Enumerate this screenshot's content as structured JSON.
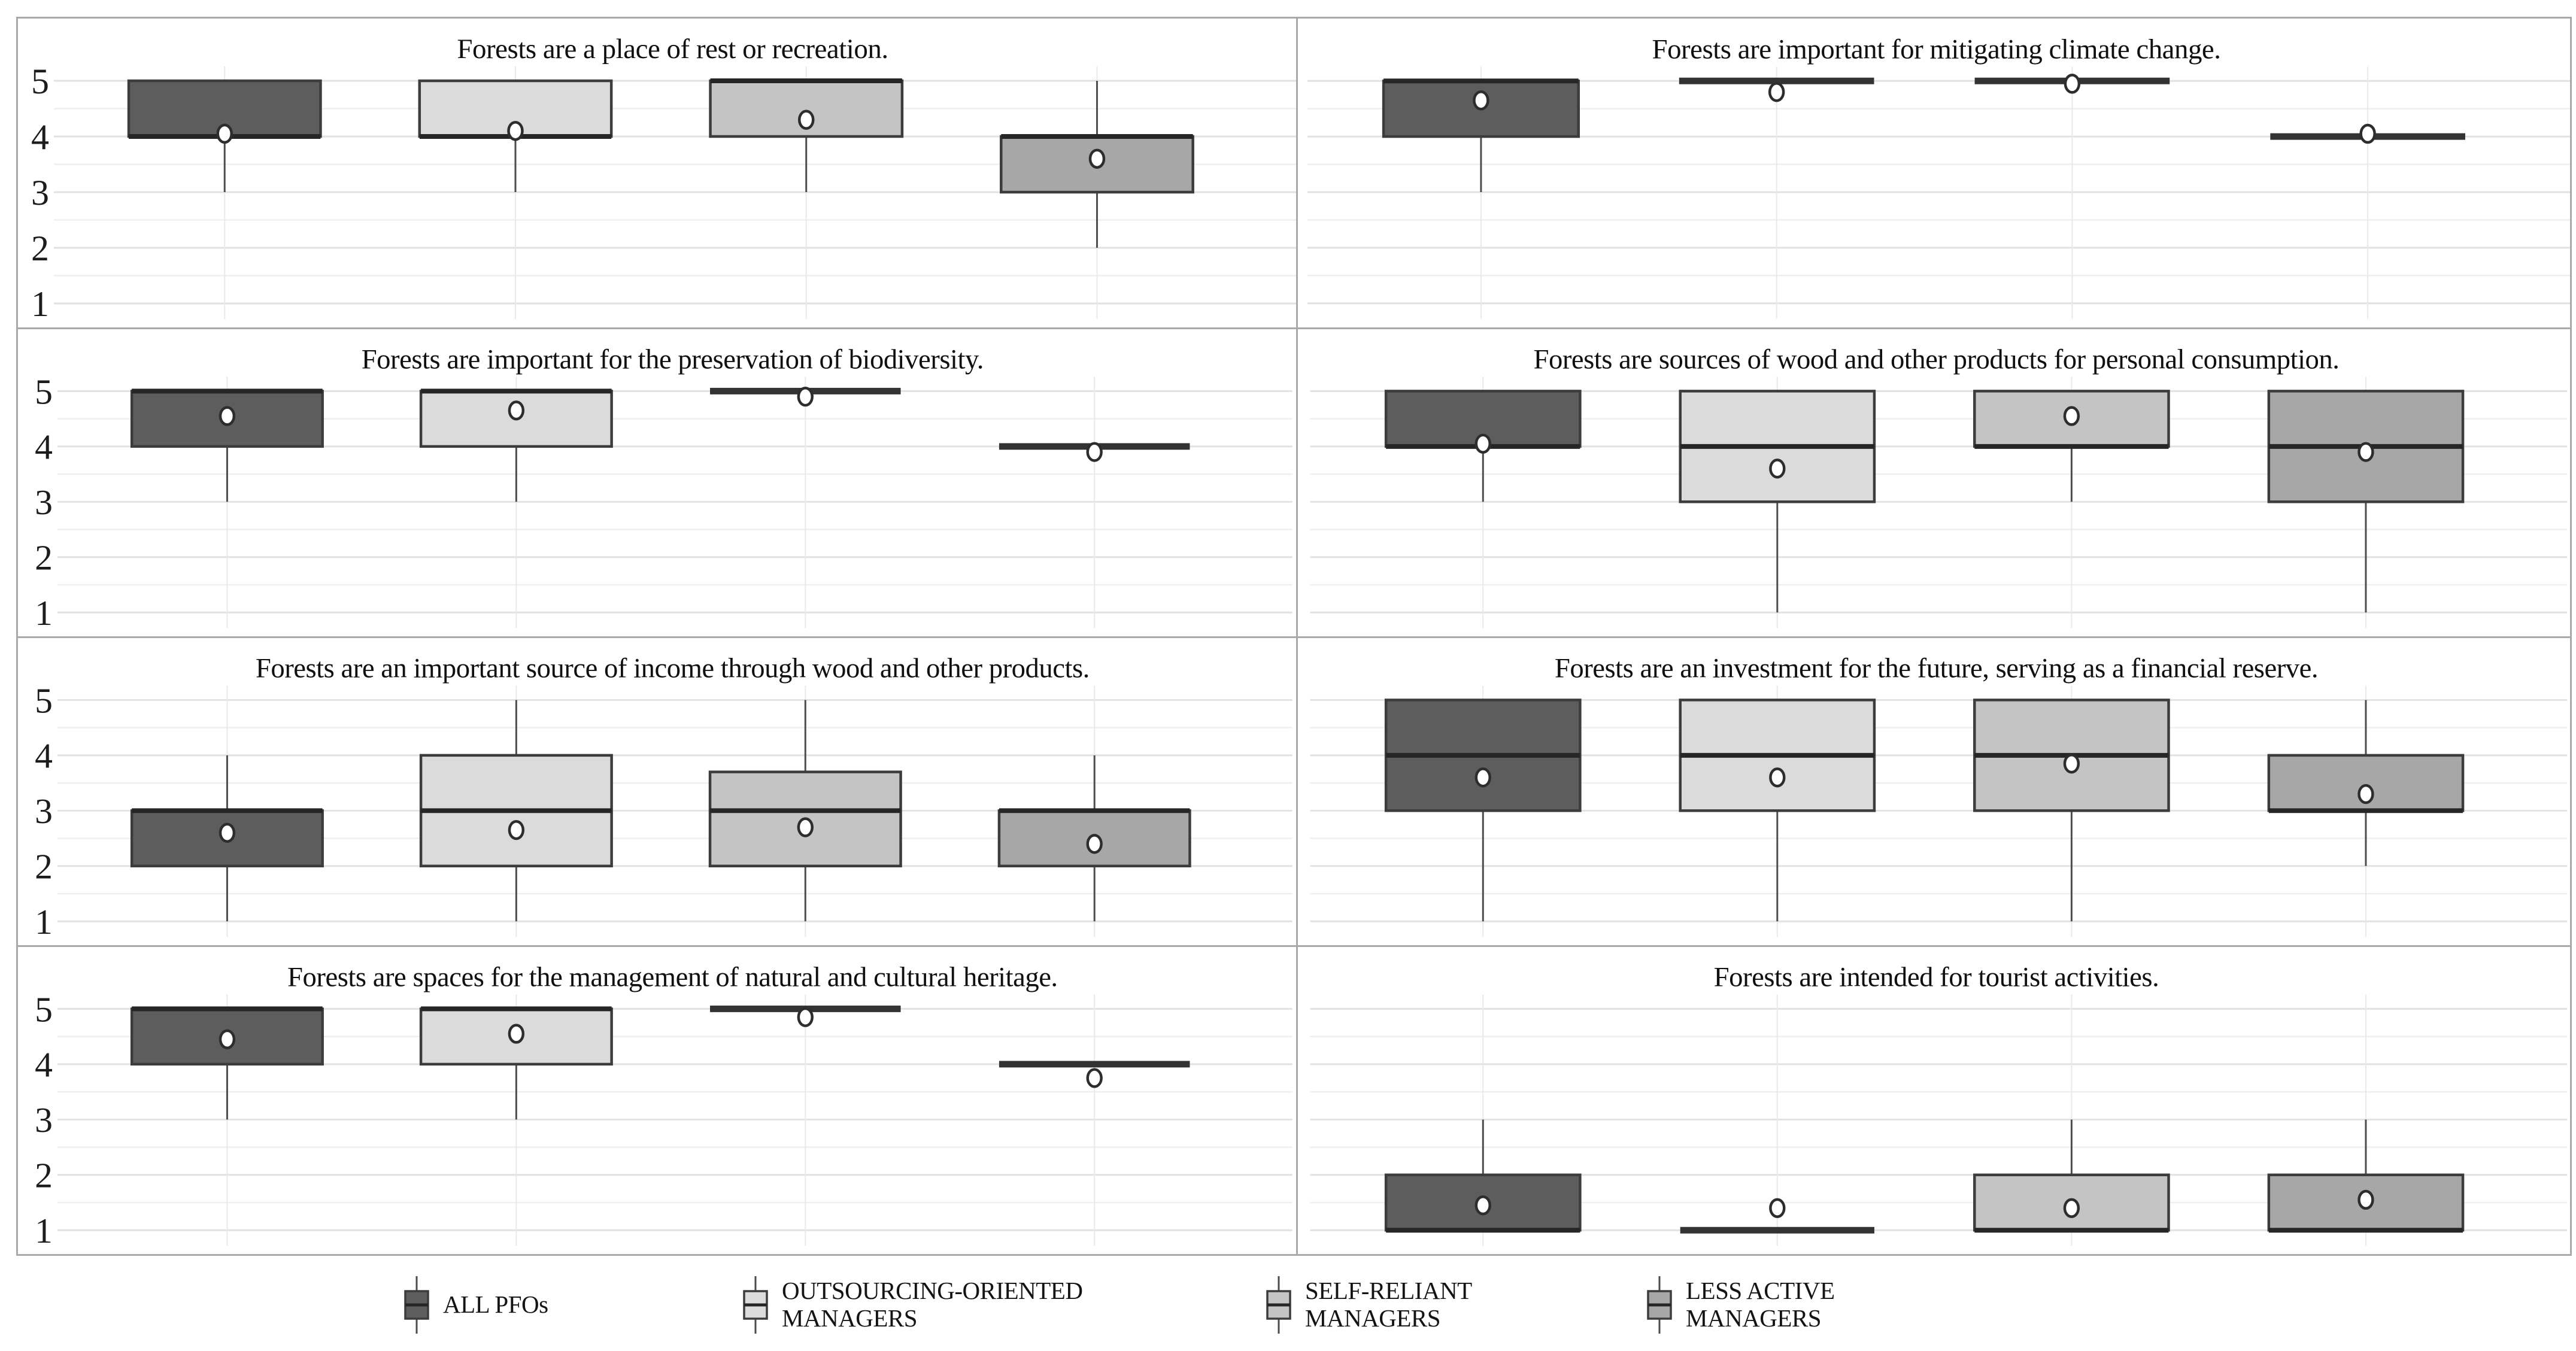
{
  "figure": {
    "background": "#ffffff",
    "frame_color": "#a9a9a9",
    "layout": "4 rows x 2 columns of box plot panels, shared 1-5 scale, legend below"
  },
  "axis": {
    "ymin": 1,
    "ymax": 5,
    "ytick_labels": [
      "5",
      "4",
      "3",
      "2",
      "1"
    ],
    "tick_values": [
      5,
      4,
      3,
      2,
      1
    ],
    "gridlines": "horizontal every 0.5, light gray; one light vertical gridline per category",
    "tick_labels_shown_only_on_left_column": true
  },
  "palette": {
    "all_pfos_fill": "#5d5d5d",
    "outsourcing_fill": "#dbdbdb",
    "self_reliant_fill": "#c4c4c4",
    "less_active_fill": "#a7a7a7",
    "box_stroke": "#3c3c3c",
    "median_color": "#262626",
    "flat_box_color": "#333333",
    "whisker_color": "#4d4d4d",
    "mean_marker": "white circle with dark ring",
    "grid_major": "#e2e2e2",
    "grid_minor": "#efefef",
    "grid_vertical": "#e9e9e9"
  },
  "legend": {
    "items": [
      {
        "label": "ALL PFOs",
        "lines": [
          "ALL PFOs"
        ],
        "color": "#5d5d5d"
      },
      {
        "label": "OUTSOURCING-ORIENTED MANAGERS",
        "lines": [
          "OUTSOURCING-ORIENTED",
          "MANAGERS"
        ],
        "color": "#dbdbdb"
      },
      {
        "label": "SELF-RELIANT MANAGERS",
        "lines": [
          "SELF-RELIANT",
          "MANAGERS"
        ],
        "color": "#c4c4c4"
      },
      {
        "label": "LESS ACTIVE MANAGERS",
        "lines": [
          "LESS ACTIVE",
          "MANAGERS"
        ],
        "color": "#a7a7a7"
      }
    ]
  },
  "chart_data": [
    {
      "type": "box",
      "title": "Forests are a place of rest or recreation.",
      "row": 1,
      "col": 1,
      "ylim": [
        1,
        5
      ],
      "series": [
        {
          "group": "ALL PFOs",
          "q1": 4,
          "median": 4,
          "q3": 5,
          "mean": 4.05,
          "whisker_low": 3,
          "whisker_high": null
        },
        {
          "group": "OUTSOURCING-ORIENTED MANAGERS",
          "q1": 4,
          "median": 4,
          "q3": 5,
          "mean": 4.1,
          "whisker_low": 3,
          "whisker_high": null
        },
        {
          "group": "SELF-RELIANT MANAGERS",
          "q1": 4,
          "median": 5,
          "q3": 5,
          "mean": 4.3,
          "whisker_low": 3,
          "whisker_high": null
        },
        {
          "group": "LESS ACTIVE MANAGERS",
          "q1": 3,
          "median": 4,
          "q3": 4,
          "mean": 3.6,
          "whisker_low": 2,
          "whisker_high": 5
        }
      ]
    },
    {
      "type": "box",
      "title": "Forests are important for mitigating climate change.",
      "row": 1,
      "col": 2,
      "ylim": [
        1,
        5
      ],
      "series": [
        {
          "group": "ALL PFOs",
          "q1": 4,
          "median": 5,
          "q3": 5,
          "mean": 4.65,
          "whisker_low": 3,
          "whisker_high": null
        },
        {
          "group": "OUTSOURCING-ORIENTED MANAGERS",
          "q1": 5,
          "median": 5,
          "q3": 5,
          "mean": 4.8,
          "whisker_low": null,
          "whisker_high": null
        },
        {
          "group": "SELF-RELIANT MANAGERS",
          "q1": 5,
          "median": 5,
          "q3": 5,
          "mean": 4.95,
          "whisker_low": null,
          "whisker_high": null
        },
        {
          "group": "LESS ACTIVE MANAGERS",
          "q1": 4,
          "median": 4,
          "q3": 4,
          "mean": 4.05,
          "whisker_low": null,
          "whisker_high": null
        }
      ]
    },
    {
      "type": "box",
      "title": "Forests are important for the preservation of biodiversity.",
      "row": 2,
      "col": 1,
      "ylim": [
        1,
        5
      ],
      "series": [
        {
          "group": "ALL PFOs",
          "q1": 4,
          "median": 5,
          "q3": 5,
          "mean": 4.55,
          "whisker_low": 3,
          "whisker_high": null
        },
        {
          "group": "OUTSOURCING-ORIENTED MANAGERS",
          "q1": 4,
          "median": 5,
          "q3": 5,
          "mean": 4.65,
          "whisker_low": 3,
          "whisker_high": null
        },
        {
          "group": "SELF-RELIANT MANAGERS",
          "q1": 5,
          "median": 5,
          "q3": 5,
          "mean": 4.9,
          "whisker_low": null,
          "whisker_high": null
        },
        {
          "group": "LESS ACTIVE MANAGERS",
          "q1": 4,
          "median": 4,
          "q3": 4,
          "mean": 3.9,
          "whisker_low": null,
          "whisker_high": null
        }
      ]
    },
    {
      "type": "box",
      "title": "Forests are sources of wood and other products for personal consumption.",
      "row": 2,
      "col": 2,
      "ylim": [
        1,
        5
      ],
      "series": [
        {
          "group": "ALL PFOs",
          "q1": 4,
          "median": 4,
          "q3": 5,
          "mean": 4.05,
          "whisker_low": 3,
          "whisker_high": null
        },
        {
          "group": "OUTSOURCING-ORIENTED MANAGERS",
          "q1": 3,
          "median": 4,
          "q3": 5,
          "mean": 3.6,
          "whisker_low": 1,
          "whisker_high": null
        },
        {
          "group": "SELF-RELIANT MANAGERS",
          "q1": 4,
          "median": 4,
          "q3": 5,
          "mean": 4.55,
          "whisker_low": 3,
          "whisker_high": null
        },
        {
          "group": "LESS ACTIVE MANAGERS",
          "q1": 3,
          "median": 4,
          "q3": 5,
          "mean": 3.9,
          "whisker_low": 1,
          "whisker_high": null
        }
      ]
    },
    {
      "type": "box",
      "title": "Forests are an important source of income through wood and other products.",
      "row": 3,
      "col": 1,
      "ylim": [
        1,
        5
      ],
      "series": [
        {
          "group": "ALL PFOs",
          "q1": 2,
          "median": 3,
          "q3": 3,
          "mean": 2.6,
          "whisker_low": 1,
          "whisker_high": 4
        },
        {
          "group": "OUTSOURCING-ORIENTED MANAGERS",
          "q1": 2,
          "median": 3,
          "q3": 4,
          "mean": 2.65,
          "whisker_low": 1,
          "whisker_high": 5
        },
        {
          "group": "SELF-RELIANT MANAGERS",
          "q1": 2,
          "median": 3,
          "q3": 3.7,
          "mean": 2.7,
          "whisker_low": 1,
          "whisker_high": 5
        },
        {
          "group": "LESS ACTIVE MANAGERS",
          "q1": 2,
          "median": 3,
          "q3": 3,
          "mean": 2.4,
          "whisker_low": 1,
          "whisker_high": 4
        }
      ]
    },
    {
      "type": "box",
      "title": "Forests are an investment for the future, serving as a financial reserve.",
      "row": 3,
      "col": 2,
      "ylim": [
        1,
        5
      ],
      "series": [
        {
          "group": "ALL PFOs",
          "q1": 3,
          "median": 4,
          "q3": 5,
          "mean": 3.6,
          "whisker_low": 1,
          "whisker_high": null
        },
        {
          "group": "OUTSOURCING-ORIENTED MANAGERS",
          "q1": 3,
          "median": 4,
          "q3": 5,
          "mean": 3.6,
          "whisker_low": 1,
          "whisker_high": null
        },
        {
          "group": "SELF-RELIANT MANAGERS",
          "q1": 3,
          "median": 4,
          "q3": 5,
          "mean": 3.85,
          "whisker_low": 1,
          "whisker_high": null
        },
        {
          "group": "LESS ACTIVE MANAGERS",
          "q1": 3,
          "median": 3,
          "q3": 4,
          "mean": 3.3,
          "whisker_low": 2,
          "whisker_high": 5
        }
      ]
    },
    {
      "type": "box",
      "title": "Forests are spaces for the management of natural and cultural heritage.",
      "row": 4,
      "col": 1,
      "ylim": [
        1,
        5
      ],
      "series": [
        {
          "group": "ALL PFOs",
          "q1": 4,
          "median": 5,
          "q3": 5,
          "mean": 4.45,
          "whisker_low": 3,
          "whisker_high": null
        },
        {
          "group": "OUTSOURCING-ORIENTED MANAGERS",
          "q1": 4,
          "median": 5,
          "q3": 5,
          "mean": 4.55,
          "whisker_low": 3,
          "whisker_high": null
        },
        {
          "group": "SELF-RELIANT MANAGERS",
          "q1": 5,
          "median": 5,
          "q3": 5,
          "mean": 4.85,
          "whisker_low": null,
          "whisker_high": null
        },
        {
          "group": "LESS ACTIVE MANAGERS",
          "q1": 4,
          "median": 4,
          "q3": 4,
          "mean": 3.75,
          "whisker_low": null,
          "whisker_high": null
        }
      ]
    },
    {
      "type": "box",
      "title": "Forests are intended for tourist activities.",
      "row": 4,
      "col": 2,
      "ylim": [
        1,
        5
      ],
      "series": [
        {
          "group": "ALL PFOs",
          "q1": 1,
          "median": 1,
          "q3": 2,
          "mean": 1.45,
          "whisker_low": null,
          "whisker_high": 3
        },
        {
          "group": "OUTSOURCING-ORIENTED MANAGERS",
          "q1": 1,
          "median": 1,
          "q3": 1,
          "mean": 1.4,
          "whisker_low": null,
          "whisker_high": null
        },
        {
          "group": "SELF-RELIANT MANAGERS",
          "q1": 1,
          "median": 1,
          "q3": 2,
          "mean": 1.4,
          "whisker_low": null,
          "whisker_high": 3
        },
        {
          "group": "LESS ACTIVE MANAGERS",
          "q1": 1,
          "median": 1,
          "q3": 2,
          "mean": 1.55,
          "whisker_low": null,
          "whisker_high": 3
        }
      ]
    }
  ]
}
